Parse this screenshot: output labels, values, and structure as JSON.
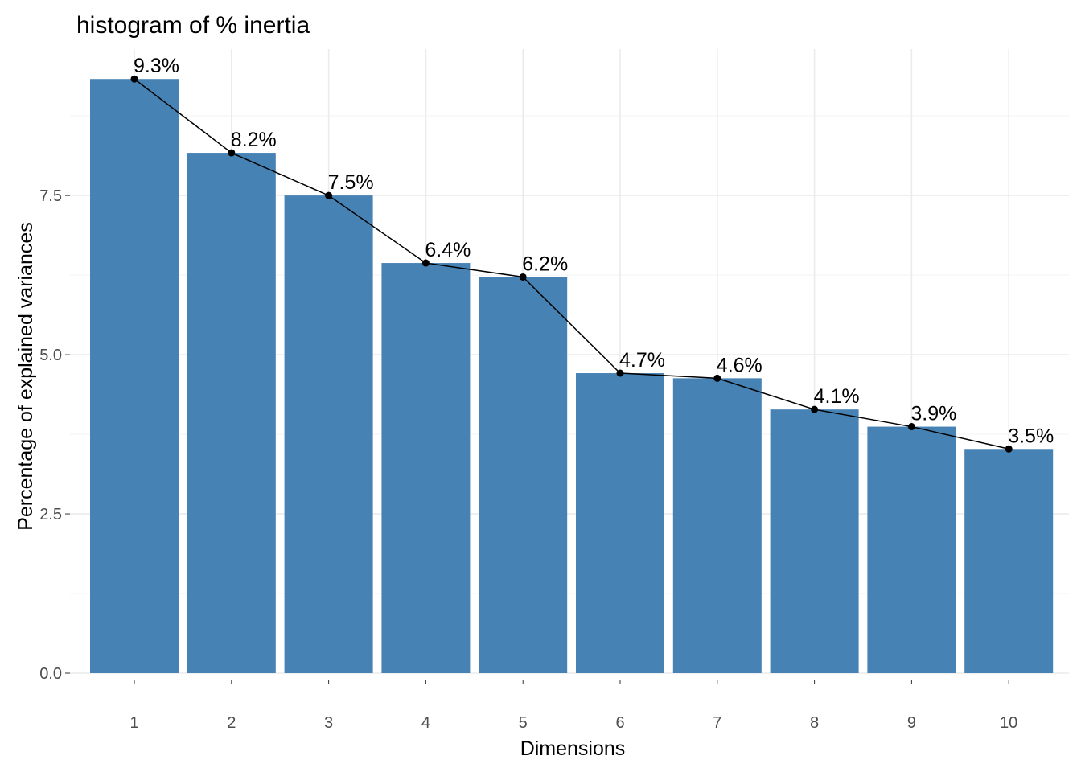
{
  "chart_data": {
    "type": "bar",
    "title": "histogram of % inertia",
    "xlabel": "Dimensions",
    "ylabel": "Percentage of explained variances",
    "categories": [
      "1",
      "2",
      "3",
      "4",
      "5",
      "6",
      "7",
      "8",
      "9",
      "10"
    ],
    "values": [
      9.33,
      8.17,
      7.5,
      6.44,
      6.22,
      4.71,
      4.63,
      4.14,
      3.87,
      3.52
    ],
    "data_labels": [
      "9.3%",
      "8.2%",
      "7.5%",
      "6.4%",
      "6.2%",
      "4.7%",
      "4.6%",
      "4.1%",
      "3.9%",
      "3.5%"
    ],
    "ylim": [
      0,
      9.8
    ],
    "yticks": [
      0,
      2.5,
      5,
      7.5
    ],
    "ytick_labels": [
      "0.0",
      "2.5",
      "5.0",
      "7.5"
    ],
    "grid": true,
    "line_overlay": true,
    "bar_color": "#4682b4",
    "line_color": "#000000"
  }
}
